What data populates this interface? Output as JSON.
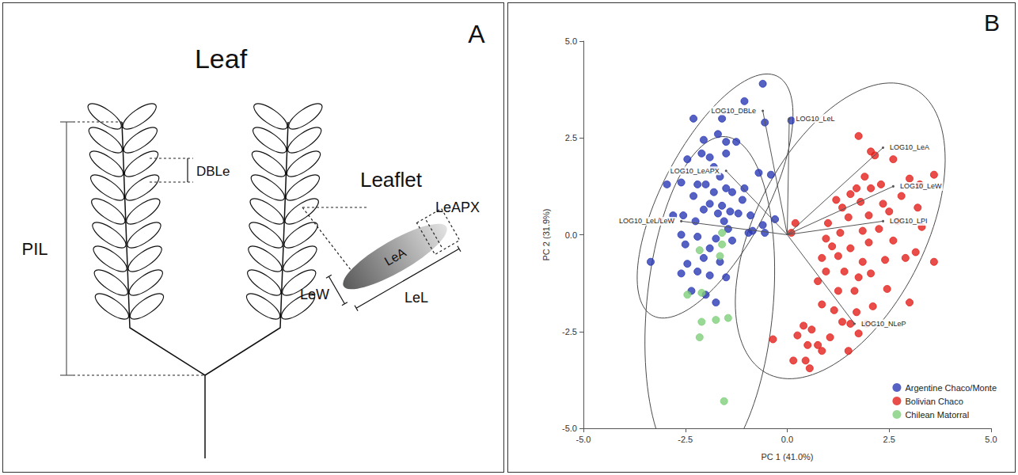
{
  "panel_a": {
    "letter": "A",
    "leaf_title": "Leaf",
    "leaflet_title": "Leaflet",
    "labels": {
      "pil": "PIL",
      "dble": "DBLe",
      "lew": "LeW",
      "lel": "LeL",
      "lea": "LeA",
      "leapx": "LeAPX"
    }
  },
  "chart_data": {
    "type": "scatter",
    "letter": "B",
    "x_label": "PC 1 (41.0%)",
    "y_label": "PC 2 (31.9%)",
    "xlim": [
      -5,
      5
    ],
    "ylim": [
      -5,
      5
    ],
    "xticks": [
      {
        "value": -5,
        "label": "-5.0"
      },
      -2.5,
      {
        "value": 0,
        "label": "0.0"
      },
      2.5,
      {
        "value": 5,
        "label": "5.0"
      }
    ],
    "yticks": [
      {
        "value": -5,
        "label": "-5.0"
      },
      -2.5,
      {
        "value": 0,
        "label": "0.0"
      },
      2.5,
      {
        "value": 5,
        "label": "5.0"
      }
    ],
    "grid": false,
    "legend": "lower right",
    "series": [
      {
        "name": "Argentine Chaco/Monte",
        "color": "#2a3ab4",
        "values": [
          [
            -0.6,
            3.9
          ],
          [
            -1.05,
            3.45
          ],
          [
            -0.55,
            2.9
          ],
          [
            0.1,
            2.95
          ],
          [
            -1.6,
            3.0
          ],
          [
            -2.3,
            3.0
          ],
          [
            -1.7,
            2.6
          ],
          [
            -1.5,
            2.4
          ],
          [
            -2.05,
            2.45
          ],
          [
            -1.25,
            2.4
          ],
          [
            -2.1,
            2.1
          ],
          [
            -1.9,
            2.0
          ],
          [
            -1.5,
            2.1
          ],
          [
            -2.45,
            1.95
          ],
          [
            -1.8,
            1.75
          ],
          [
            -2.6,
            1.35
          ],
          [
            -1.65,
            1.5
          ],
          [
            -0.7,
            1.6
          ],
          [
            -0.4,
            1.55
          ],
          [
            -2.2,
            1.3
          ],
          [
            -2.0,
            1.3
          ],
          [
            -1.5,
            1.2
          ],
          [
            -1.35,
            1.1
          ],
          [
            -1.05,
            1.2
          ],
          [
            -2.95,
            1.3
          ],
          [
            -2.3,
            1.0
          ],
          [
            -1.9,
            0.8
          ],
          [
            -1.6,
            0.75
          ],
          [
            -1.4,
            0.6
          ],
          [
            -1.2,
            0.55
          ],
          [
            -2.8,
            0.5
          ],
          [
            -2.55,
            0.5
          ],
          [
            -2.05,
            0.65
          ],
          [
            -1.7,
            0.55
          ],
          [
            -1.55,
            0.35
          ],
          [
            -2.25,
            0.35
          ],
          [
            -1.45,
            0.15
          ],
          [
            -0.6,
            0.25
          ],
          [
            -0.3,
            0.4
          ],
          [
            -0.85,
            0.1
          ],
          [
            -0.95,
            0.05
          ],
          [
            -0.55,
            0.05
          ],
          [
            -2.6,
            0.0
          ],
          [
            -2.2,
            -0.05
          ],
          [
            -1.75,
            -0.1
          ],
          [
            -1.35,
            -0.15
          ],
          [
            -2.5,
            -0.25
          ],
          [
            -1.9,
            -0.35
          ],
          [
            -3.35,
            -0.7
          ],
          [
            -2.05,
            -0.6
          ],
          [
            -2.45,
            -0.75
          ],
          [
            -1.65,
            -0.7
          ],
          [
            -2.2,
            -0.95
          ],
          [
            -2.6,
            -1.0
          ],
          [
            -1.9,
            -1.05
          ],
          [
            -1.5,
            -1.1
          ],
          [
            -2.35,
            -1.45
          ],
          [
            -2.0,
            -1.55
          ],
          [
            -1.75,
            -1.75
          ],
          [
            -0.9,
            0.5
          ],
          [
            -1.1,
            0.9
          ],
          [
            -1.8,
            1.1
          ]
        ]
      },
      {
        "name": "Bolivian Chaco",
        "color": "#e3201c",
        "values": [
          [
            1.75,
            2.55
          ],
          [
            2.05,
            2.15
          ],
          [
            2.15,
            2.05
          ],
          [
            2.6,
            1.95
          ],
          [
            1.9,
            1.5
          ],
          [
            3.0,
            1.45
          ],
          [
            2.3,
            1.3
          ],
          [
            1.7,
            1.2
          ],
          [
            2.05,
            1.2
          ],
          [
            1.55,
            1.05
          ],
          [
            3.25,
            1.3
          ],
          [
            2.8,
            1.0
          ],
          [
            3.6,
            1.55
          ],
          [
            1.2,
            0.9
          ],
          [
            1.35,
            0.7
          ],
          [
            2.35,
            0.8
          ],
          [
            1.8,
            0.85
          ],
          [
            2.5,
            0.6
          ],
          [
            3.2,
            0.7
          ],
          [
            0.2,
            0.3
          ],
          [
            1.0,
            0.3
          ],
          [
            1.5,
            0.45
          ],
          [
            2.0,
            0.5
          ],
          [
            2.7,
            0.35
          ],
          [
            0.95,
            -0.1
          ],
          [
            1.3,
            0.05
          ],
          [
            1.85,
            0.1
          ],
          [
            2.25,
            0.15
          ],
          [
            3.3,
            0.2
          ],
          [
            0.1,
            0.05
          ],
          [
            1.1,
            -0.3
          ],
          [
            1.55,
            -0.35
          ],
          [
            2.0,
            -0.2
          ],
          [
            2.6,
            -0.15
          ],
          [
            3.15,
            -0.45
          ],
          [
            0.85,
            -0.6
          ],
          [
            1.25,
            -0.55
          ],
          [
            1.85,
            -0.7
          ],
          [
            2.4,
            -0.65
          ],
          [
            2.9,
            -0.6
          ],
          [
            0.95,
            -0.95
          ],
          [
            1.4,
            -0.95
          ],
          [
            1.75,
            -1.1
          ],
          [
            2.05,
            -1.0
          ],
          [
            3.6,
            -0.7
          ],
          [
            0.75,
            -1.2
          ],
          [
            1.25,
            -1.45
          ],
          [
            1.65,
            -1.45
          ],
          [
            2.45,
            -1.4
          ],
          [
            3.0,
            -1.75
          ],
          [
            0.85,
            -1.8
          ],
          [
            1.15,
            -1.95
          ],
          [
            1.7,
            -2.0
          ],
          [
            2.1,
            -1.85
          ],
          [
            1.35,
            -2.25
          ],
          [
            1.95,
            -2.3
          ],
          [
            0.4,
            -2.35
          ],
          [
            0.6,
            -2.45
          ],
          [
            1.05,
            -2.65
          ],
          [
            1.75,
            -2.55
          ],
          [
            0.25,
            -2.6
          ],
          [
            0.5,
            -2.85
          ],
          [
            0.75,
            -2.85
          ],
          [
            0.85,
            -3.0
          ],
          [
            -0.35,
            -2.7
          ],
          [
            0.15,
            -3.25
          ],
          [
            0.45,
            -3.25
          ],
          [
            0.55,
            -3.45
          ],
          [
            1.5,
            -3.0
          ],
          [
            1.55,
            -2.3
          ]
        ]
      },
      {
        "name": "Chilean Matorral",
        "color": "#7fcf7a",
        "values": [
          [
            -2.15,
            -0.4
          ],
          [
            -1.6,
            -0.25
          ],
          [
            -1.65,
            -0.55
          ],
          [
            -1.6,
            0.05
          ],
          [
            -2.45,
            -1.55
          ],
          [
            -2.1,
            -1.5
          ],
          [
            -2.1,
            -2.25
          ],
          [
            -1.75,
            -2.2
          ],
          [
            -1.45,
            -2.15
          ],
          [
            -2.15,
            -2.65
          ],
          [
            -1.55,
            -4.3
          ]
        ]
      }
    ],
    "ellipses": [
      {
        "series": "Argentine Chaco/Monte",
        "center": [
          -1.77,
          1.0
        ],
        "semi_axes": [
          3.45,
          1.3
        ],
        "angle": 64
      },
      {
        "series": "Bolivian Chaco",
        "center": [
          1.3,
          0.1
        ],
        "semi_axes": [
          4.1,
          2.1
        ],
        "angle": 65
      },
      {
        "series": "Chilean Matorral",
        "center": [
          -1.9,
          -1.85
        ],
        "semi_axes": [
          4.4,
          1.55
        ],
        "angle": 85
      }
    ],
    "loadings": [
      {
        "label": "LOG10_DBLe",
        "x": -0.6,
        "y": 3.2
      },
      {
        "label": "LOG10_LeL",
        "x": 0.05,
        "y": 3.0
      },
      {
        "label": "LOG10_LeA",
        "x": 2.35,
        "y": 2.25
      },
      {
        "label": "LOG10_LeW",
        "x": 2.6,
        "y": 1.25
      },
      {
        "label": "LOG10_LPI",
        "x": 2.35,
        "y": 0.35
      },
      {
        "label": "LOG10_NLeP",
        "x": 1.65,
        "y": -2.3
      },
      {
        "label": "LOG10_LeAPX",
        "x": -1.5,
        "y": 1.65
      },
      {
        "label": "LOG10_LeL/LeW",
        "x": -2.6,
        "y": 0.35
      }
    ]
  }
}
